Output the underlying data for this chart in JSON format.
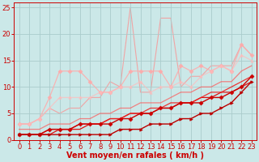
{
  "bg_color": "#cbe8e8",
  "grid_color": "#aacccc",
  "xlabel": "Vent moyen/en rafales ( km/h )",
  "xlabel_color": "#cc0000",
  "xlabel_fontsize": 7,
  "xlim": [
    -0.5,
    23.5
  ],
  "ylim": [
    0,
    26
  ],
  "xticks": [
    0,
    1,
    2,
    3,
    4,
    5,
    6,
    7,
    8,
    9,
    10,
    11,
    12,
    13,
    14,
    15,
    16,
    17,
    18,
    19,
    20,
    21,
    22,
    23
  ],
  "yticks": [
    0,
    5,
    10,
    15,
    20,
    25
  ],
  "tick_color": "#cc0000",
  "tick_fontsize": 6,
  "arrow_row": "↓ ←→ ↓ ↘ ↓ ↘↓ ↘↓ ↓ ↘ ↓↘ ←↗ ↘↓ ↘↓ ↘↓ ↘← ↗↑ ↘↓ ↘↓ ←↗ ↘↓",
  "series": [
    {
      "x": [
        0,
        1,
        2,
        3,
        4,
        5,
        6,
        7,
        8,
        9,
        10,
        11,
        12,
        13,
        14,
        15,
        16,
        17,
        18,
        19,
        20,
        21,
        22,
        23
      ],
      "y": [
        1,
        1,
        1,
        1,
        1,
        1,
        1,
        1,
        1,
        1,
        2,
        2,
        2,
        3,
        3,
        3,
        4,
        4,
        5,
        5,
        6,
        7,
        9,
        11
      ],
      "color": "#bb0000",
      "marker": ">",
      "markersize": 2.5,
      "linewidth": 1.0,
      "alpha": 1.0,
      "zorder": 5
    },
    {
      "x": [
        0,
        1,
        2,
        3,
        4,
        5,
        6,
        7,
        8,
        9,
        10,
        11,
        12,
        13,
        14,
        15,
        16,
        17,
        18,
        19,
        20,
        21,
        22,
        23
      ],
      "y": [
        1,
        1,
        1,
        2,
        2,
        2,
        3,
        3,
        3,
        3,
        4,
        4,
        5,
        5,
        6,
        6,
        7,
        7,
        7,
        8,
        8,
        9,
        10,
        12
      ],
      "color": "#cc0000",
      "marker": "D",
      "markersize": 2.5,
      "linewidth": 1.0,
      "alpha": 1.0,
      "zorder": 4
    },
    {
      "x": [
        0,
        1,
        2,
        3,
        4,
        5,
        6,
        7,
        8,
        9,
        10,
        11,
        12,
        13,
        14,
        15,
        16,
        17,
        18,
        19,
        20,
        21,
        22,
        23
      ],
      "y": [
        1,
        1,
        1,
        1,
        2,
        2,
        2,
        3,
        3,
        4,
        4,
        5,
        5,
        5,
        6,
        6,
        7,
        7,
        8,
        8,
        9,
        9,
        10,
        11
      ],
      "color": "#dd1111",
      "marker": null,
      "markersize": 0,
      "linewidth": 0.9,
      "alpha": 1.0,
      "zorder": 3
    },
    {
      "x": [
        0,
        1,
        2,
        3,
        4,
        5,
        6,
        7,
        8,
        9,
        10,
        11,
        12,
        13,
        14,
        15,
        16,
        17,
        18,
        19,
        20,
        21,
        22,
        23
      ],
      "y": [
        1,
        1,
        1,
        2,
        2,
        2,
        3,
        3,
        3,
        4,
        4,
        5,
        5,
        6,
        6,
        7,
        7,
        7,
        8,
        9,
        9,
        10,
        11,
        12
      ],
      "color": "#ee2222",
      "marker": null,
      "markersize": 0,
      "linewidth": 0.9,
      "alpha": 0.9,
      "zorder": 3
    },
    {
      "x": [
        0,
        1,
        2,
        3,
        4,
        5,
        6,
        7,
        8,
        9,
        10,
        11,
        12,
        13,
        14,
        15,
        16,
        17,
        18,
        19,
        20,
        21,
        22,
        23
      ],
      "y": [
        2,
        2,
        2,
        3,
        3,
        3,
        4,
        4,
        5,
        5,
        6,
        6,
        7,
        7,
        7,
        8,
        9,
        9,
        10,
        10,
        11,
        11,
        13,
        14
      ],
      "color": "#ff5555",
      "marker": null,
      "markersize": 0,
      "linewidth": 0.9,
      "alpha": 0.7,
      "zorder": 2
    },
    {
      "x": [
        0,
        1,
        2,
        3,
        4,
        5,
        6,
        7,
        8,
        9,
        10,
        11,
        12,
        13,
        14,
        15,
        16,
        17,
        18,
        19,
        20,
        21,
        22,
        23
      ],
      "y": [
        3,
        3,
        4,
        8,
        13,
        13,
        13,
        11,
        9,
        9,
        10,
        13,
        13,
        13,
        13,
        10,
        14,
        13,
        14,
        13,
        14,
        13,
        18,
        16
      ],
      "color": "#ffaaaa",
      "marker": "D",
      "markersize": 2.5,
      "linewidth": 0.9,
      "alpha": 0.85,
      "zorder": 2
    },
    {
      "x": [
        0,
        1,
        2,
        3,
        4,
        5,
        6,
        7,
        8,
        9,
        10,
        11,
        12,
        13,
        14,
        15,
        16,
        17,
        18,
        19,
        20,
        21,
        22,
        23
      ],
      "y": [
        3,
        3,
        4,
        6,
        8,
        8,
        8,
        8,
        9,
        9,
        10,
        10,
        11,
        9,
        10,
        10,
        11,
        10,
        12,
        13,
        14,
        13,
        16,
        15
      ],
      "color": "#ffbbbb",
      "marker": "^",
      "markersize": 2.5,
      "linewidth": 0.9,
      "alpha": 0.7,
      "zorder": 2
    },
    {
      "x": [
        0,
        1,
        2,
        3,
        4,
        5,
        6,
        7,
        8,
        9,
        10,
        11,
        12,
        13,
        14,
        15,
        16,
        17,
        18,
        19,
        20,
        21,
        22,
        23
      ],
      "y": [
        3,
        3,
        4,
        6,
        5,
        6,
        6,
        8,
        8,
        11,
        10,
        25,
        9,
        9,
        23,
        23,
        10,
        12,
        12,
        14,
        14,
        14,
        18,
        16
      ],
      "color": "#ff8888",
      "marker": null,
      "markersize": 0,
      "linewidth": 0.8,
      "alpha": 0.7,
      "zorder": 1
    }
  ]
}
